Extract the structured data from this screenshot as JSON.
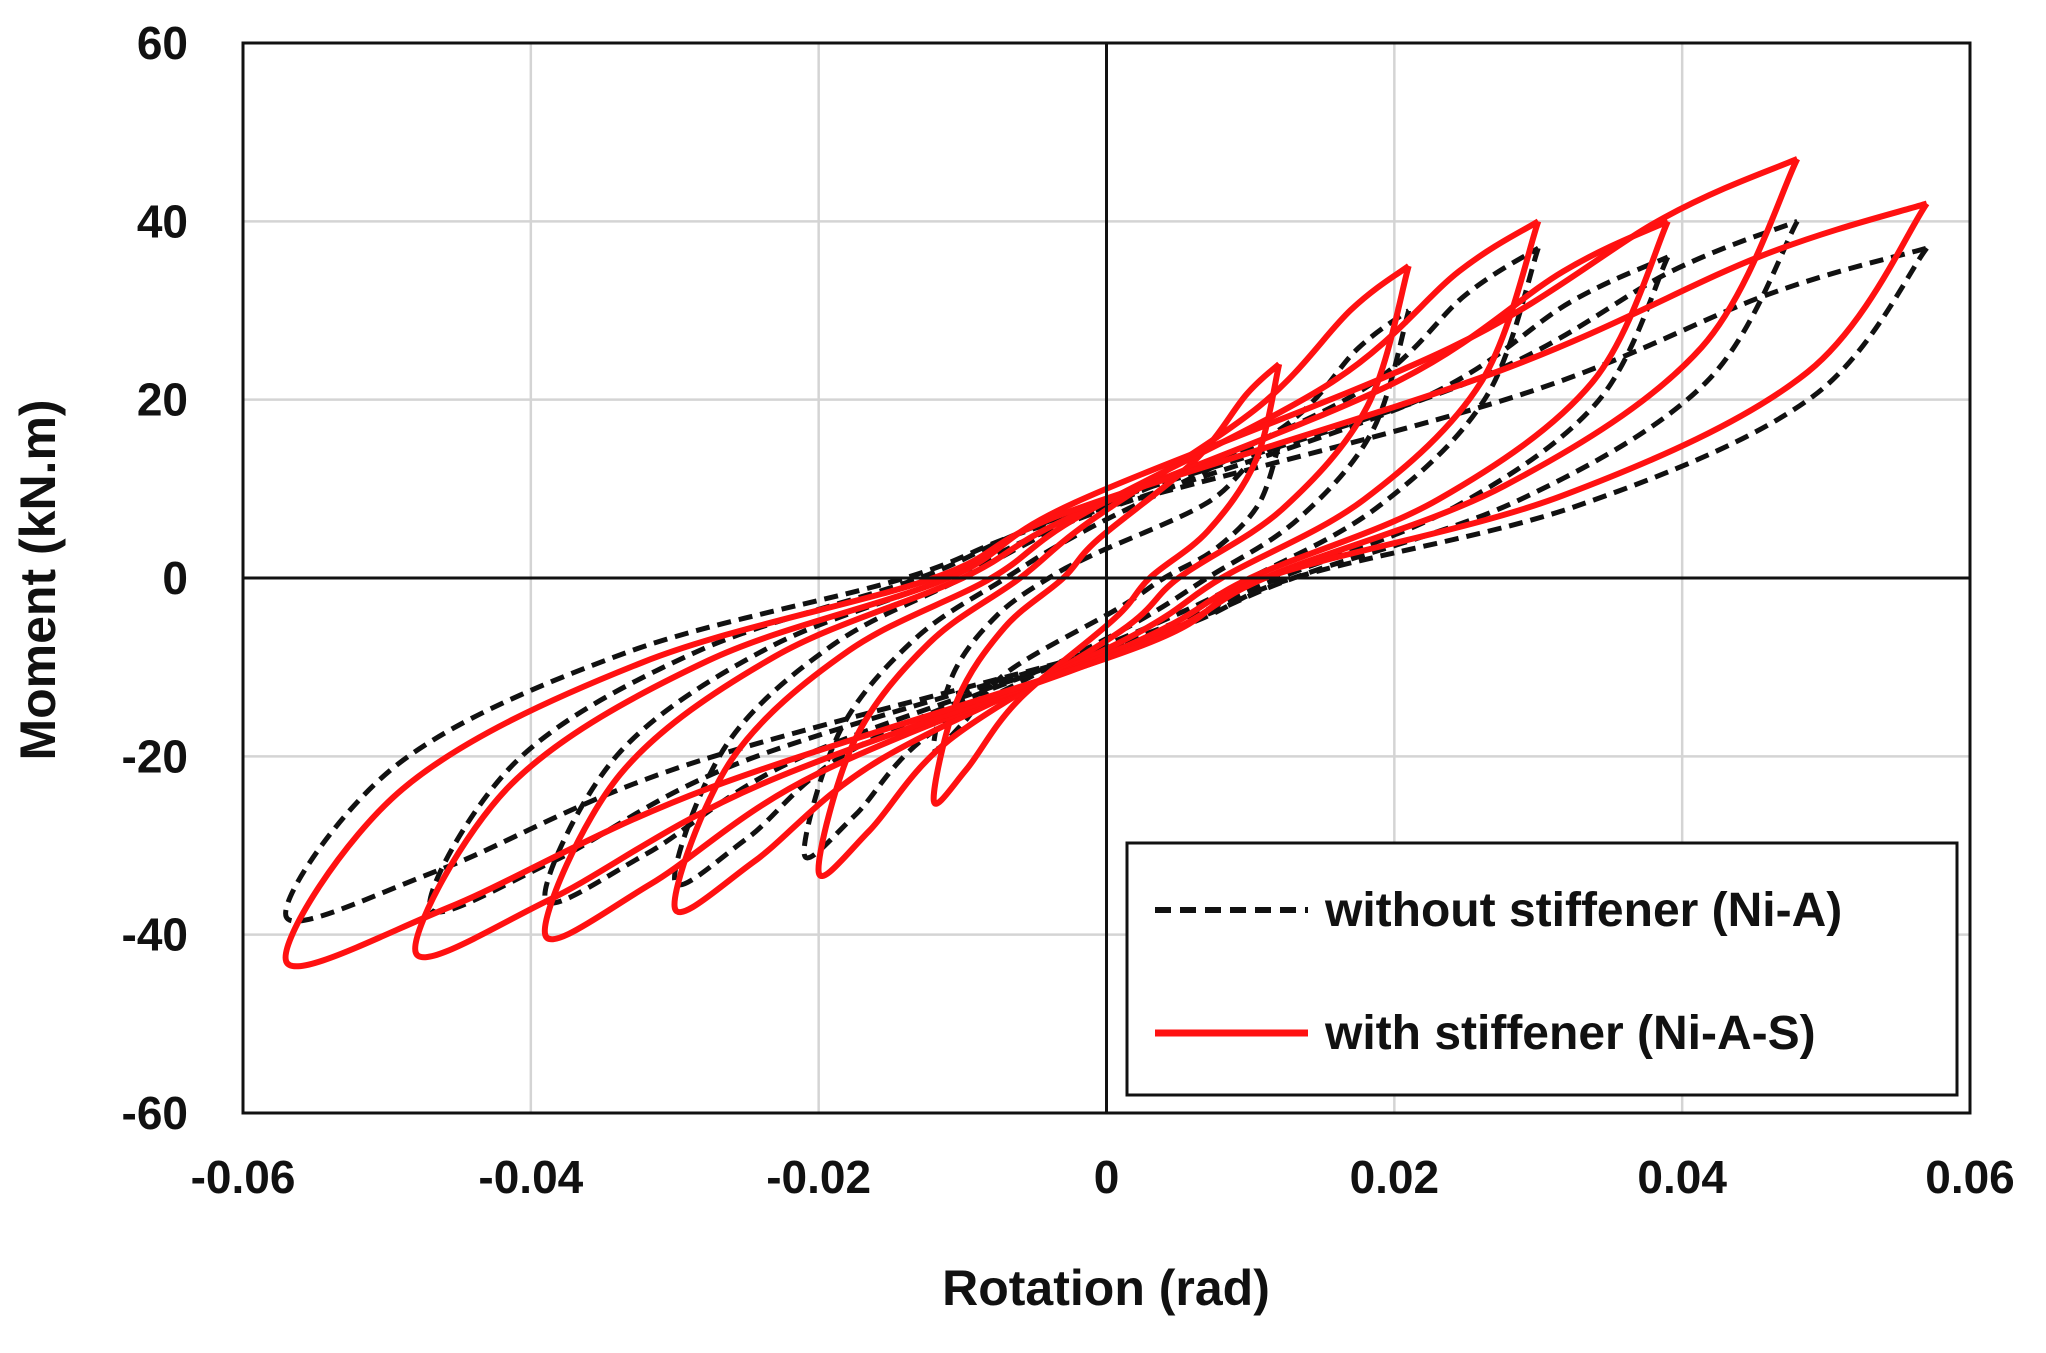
{
  "chart_data": {
    "type": "line",
    "title": "",
    "xlabel": "Rotation (rad)",
    "ylabel": "Moment (kN.m)",
    "xlim": [
      -0.06,
      0.06
    ],
    "ylim": [
      -60,
      60
    ],
    "xticks": [
      -0.06,
      -0.04,
      -0.02,
      0,
      0.02,
      0.04,
      0.06
    ],
    "xtick_labels": [
      "-0.06",
      "-0.04",
      "-0.02",
      "0",
      "0.02",
      "0.04",
      "0.06"
    ],
    "yticks": [
      -60,
      -40,
      -20,
      0,
      20,
      40,
      60
    ],
    "ytick_labels": [
      "-60",
      "-40",
      "-20",
      "0",
      "20",
      "40",
      "60"
    ],
    "grid": true,
    "legend_position": "bottom-right",
    "series": [
      {
        "name": "without stiffener (Ni-A)",
        "color": "#111111",
        "style": "dashed",
        "loops": [
          {
            "peak_pos": [
              0.012,
              15
            ],
            "peak_neg": [
              -0.012,
              -19
            ],
            "zero_pos": 0.004,
            "zero_neg": -0.004
          },
          {
            "peak_pos": [
              0.021,
              30
            ],
            "peak_neg": [
              -0.021,
              -31
            ],
            "zero_pos": 0.007,
            "zero_neg": -0.007
          },
          {
            "peak_pos": [
              0.03,
              37
            ],
            "peak_neg": [
              -0.03,
              -34
            ],
            "zero_pos": 0.01,
            "zero_neg": -0.01
          },
          {
            "peak_pos": [
              0.039,
              36
            ],
            "peak_neg": [
              -0.039,
              -36
            ],
            "zero_pos": 0.012,
            "zero_neg": -0.011
          },
          {
            "peak_pos": [
              0.048,
              40
            ],
            "peak_neg": [
              -0.047,
              -37
            ],
            "zero_pos": 0.013,
            "zero_neg": -0.013
          },
          {
            "peak_pos": [
              0.057,
              37
            ],
            "peak_neg": [
              -0.057,
              -38
            ],
            "zero_pos": 0.013,
            "zero_neg": -0.014
          }
        ]
      },
      {
        "name": "with stiffener (Ni-A-S)",
        "color": "#ff1111",
        "style": "solid",
        "loops": [
          {
            "peak_pos": [
              0.012,
              24
            ],
            "peak_neg": [
              -0.012,
              -25
            ],
            "zero_pos": 0.003,
            "zero_neg": -0.003
          },
          {
            "peak_pos": [
              0.021,
              35
            ],
            "peak_neg": [
              -0.02,
              -33
            ],
            "zero_pos": 0.005,
            "zero_neg": -0.006
          },
          {
            "peak_pos": [
              0.03,
              40
            ],
            "peak_neg": [
              -0.03,
              -37
            ],
            "zero_pos": 0.008,
            "zero_neg": -0.008
          },
          {
            "peak_pos": [
              0.039,
              40
            ],
            "peak_neg": [
              -0.039,
              -40
            ],
            "zero_pos": 0.01,
            "zero_neg": -0.01
          },
          {
            "peak_pos": [
              0.048,
              47
            ],
            "peak_neg": [
              -0.048,
              -42
            ],
            "zero_pos": 0.011,
            "zero_neg": -0.011
          },
          {
            "peak_pos": [
              0.057,
              42
            ],
            "peak_neg": [
              -0.057,
              -43
            ],
            "zero_pos": 0.011,
            "zero_neg": -0.012
          }
        ]
      }
    ]
  }
}
